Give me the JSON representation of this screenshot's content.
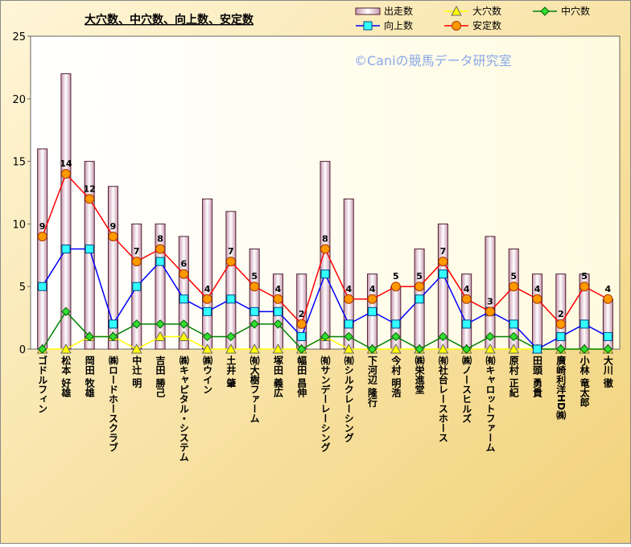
{
  "chart_data": {
    "type": "bar",
    "title": "大穴数、中穴数、向上数、安定数",
    "annotation": "©Caniの競馬データ研究室",
    "categories": [
      "ゴドルフィン",
      "松本 好雄",
      "岡田 牧雄",
      "㈱ロードホースクラブ",
      "中辻 明",
      "吉田 勝己",
      "㈱キャピタル・システム",
      "㈱ウイン",
      "土井 肇",
      "㈲大樹ファーム",
      "塚田 義広",
      "幅田 昌伸",
      "㈲サンデーレーシング",
      "㈲シルクレーシング",
      "下河辺 隆行",
      "今村 明浩",
      "㈱栄進堂",
      "㈲社台レースホース",
      "㈱ノースヒルズ",
      "㈲キャロットファーム",
      "原村 正紀",
      "田頭 勇貴",
      "廣崎利洋HD㈱",
      "小林 竜太郎",
      "大川 徹"
    ],
    "series": [
      {
        "name": "出走数",
        "type": "bar",
        "color": "#e8c8d8",
        "values": [
          16,
          22,
          15,
          13,
          10,
          10,
          9,
          12,
          11,
          8,
          6,
          6,
          15,
          12,
          6,
          5,
          8,
          10,
          6,
          9,
          8,
          6,
          6,
          6,
          4
        ]
      },
      {
        "name": "大穴数",
        "type": "line",
        "marker": "triangle",
        "color": "#ffff00",
        "values": [
          0,
          0,
          1,
          1,
          0,
          1,
          1,
          0,
          0,
          0,
          0,
          0,
          1,
          0,
          0,
          0,
          0,
          0,
          0,
          0,
          0,
          0,
          0,
          0,
          0
        ]
      },
      {
        "name": "中穴数",
        "type": "line",
        "marker": "diamond",
        "color": "#008000",
        "values": [
          0,
          3,
          1,
          1,
          2,
          2,
          2,
          1,
          1,
          2,
          2,
          0,
          1,
          1,
          0,
          1,
          0,
          1,
          0,
          1,
          1,
          0,
          0,
          0,
          0
        ]
      },
      {
        "name": "向上数",
        "type": "line",
        "marker": "square",
        "color": "#0000ff",
        "values": [
          5,
          8,
          8,
          2,
          5,
          7,
          4,
          3,
          4,
          3,
          3,
          1,
          6,
          2,
          3,
          2,
          4,
          6,
          2,
          3,
          2,
          0,
          1,
          2,
          1
        ]
      },
      {
        "name": "安定数",
        "type": "line",
        "marker": "circle",
        "color": "#ff0000",
        "labels": true,
        "values": [
          9,
          14,
          12,
          9,
          7,
          8,
          6,
          4,
          7,
          5,
          4,
          2,
          8,
          4,
          4,
          5,
          5,
          7,
          4,
          3,
          5,
          4,
          2,
          5,
          4
        ]
      }
    ],
    "ylim": [
      0,
      25
    ],
    "yticks": [
      0,
      5,
      10,
      15,
      20,
      25
    ]
  }
}
